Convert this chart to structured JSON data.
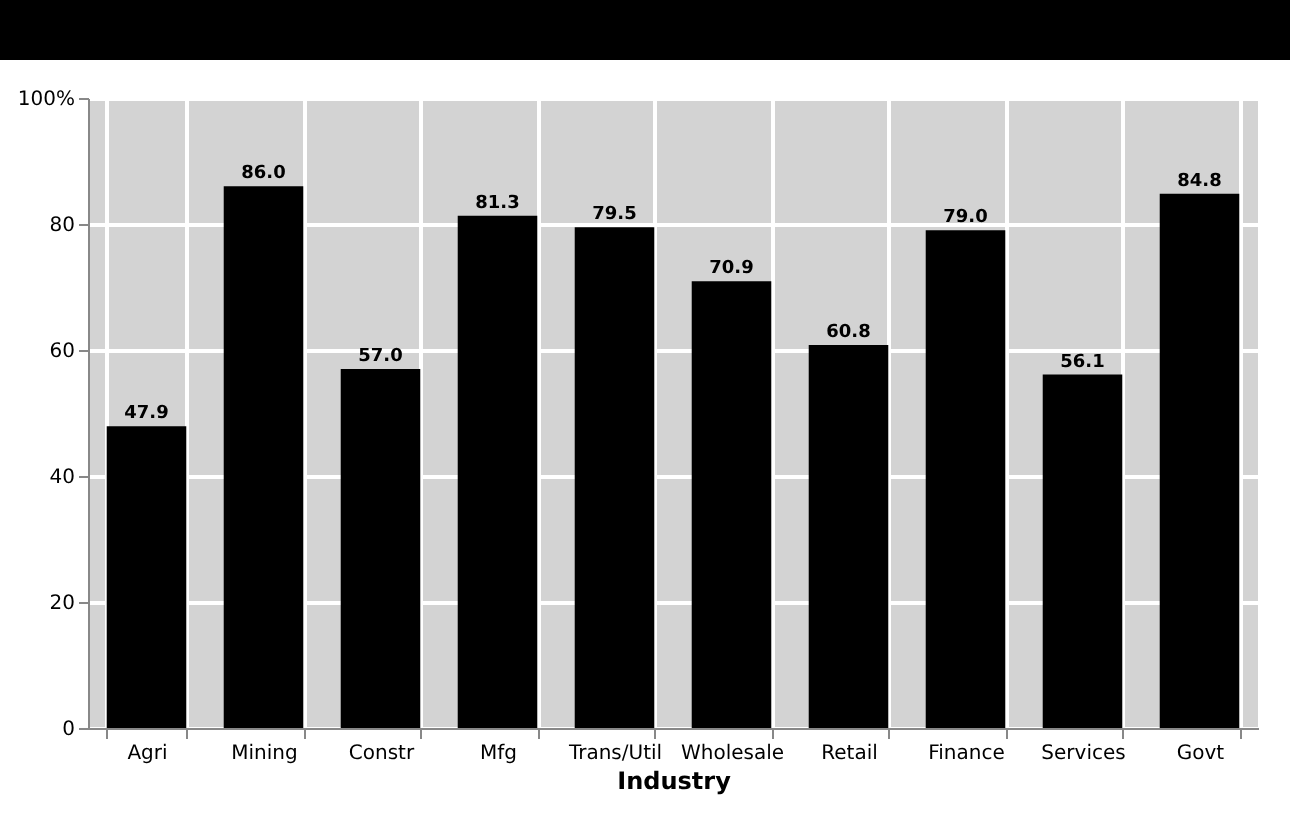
{
  "chart_data": {
    "type": "bar",
    "xlabel": "Industry",
    "categories": [
      "Agri",
      "Mining",
      "Constr",
      "Mfg",
      "Trans/Util",
      "Wholesale",
      "Retail",
      "Finance",
      "Services",
      "Govt"
    ],
    "values": [
      47.9,
      86.0,
      57.0,
      81.3,
      79.5,
      70.9,
      60.8,
      79.0,
      56.1,
      84.8
    ],
    "value_labels": [
      "47.9",
      "86.0",
      "57.0",
      "81.3",
      "79.5",
      "70.9",
      "60.8",
      "79.0",
      "56.1",
      "84.8"
    ],
    "color": "#000000",
    "ylim": [
      0,
      100
    ],
    "yticks": [
      0,
      20,
      40,
      60,
      80,
      {
        "value": 100,
        "label": "100%"
      }
    ],
    "grid": true
  }
}
